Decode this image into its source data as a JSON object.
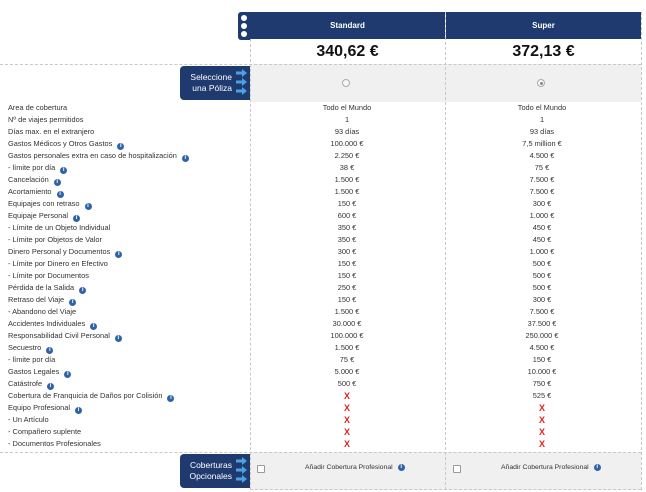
{
  "plans": [
    {
      "name": "Standard",
      "price": "340,62 €",
      "selected": false
    },
    {
      "name": "Super",
      "price": "372,13 €",
      "selected": true
    }
  ],
  "select_button": {
    "line1": "Seleccione",
    "line2": "una Póliza"
  },
  "optional_button": {
    "line1": "Coberturas",
    "line2": "Opcionales"
  },
  "add_coverage_label": "Añadir Cobertura Profesional",
  "rows": [
    {
      "label": "Area de cobertura",
      "info": false,
      "sub": false,
      "std": "Todo el Mundo",
      "sup": "Todo el Mundo"
    },
    {
      "label": "Nº de viajes permitidos",
      "info": false,
      "sub": false,
      "std": "1",
      "sup": "1"
    },
    {
      "label": "Días max. en el extranjero",
      "info": false,
      "sub": false,
      "std": "93 días",
      "sup": "93 días"
    },
    {
      "label": "Gastos Médicos y Otros Gastos",
      "info": true,
      "sub": false,
      "std": "100.000 €",
      "sup": "7,5 million €"
    },
    {
      "label": "Gastos personales extra en caso de hospitalización",
      "info": true,
      "sub": false,
      "std": "2.250 €",
      "sup": "4.500 €"
    },
    {
      "label": "-  límite por día",
      "info": true,
      "sub": true,
      "std": "38 €",
      "sup": "75 €"
    },
    {
      "label": "Cancelación",
      "info": true,
      "sub": false,
      "std": "1.500 €",
      "sup": "7.500 €"
    },
    {
      "label": "Acortamiento",
      "info": true,
      "sub": false,
      "std": "1.500 €",
      "sup": "7.500 €"
    },
    {
      "label": "Equipajes con retraso",
      "info": true,
      "sub": false,
      "std": "150 €",
      "sup": "300 €"
    },
    {
      "label": "Equipaje Personal",
      "info": true,
      "sub": false,
      "std": "600 €",
      "sup": "1.000 €"
    },
    {
      "label": "-  Límite de un Objeto Individual",
      "info": false,
      "sub": true,
      "std": "350 €",
      "sup": "450 €"
    },
    {
      "label": "-  Límite por Objetos de Valor",
      "info": false,
      "sub": true,
      "std": "350 €",
      "sup": "450 €"
    },
    {
      "label": "Dinero Personal y Documentos",
      "info": true,
      "sub": false,
      "std": "300 €",
      "sup": "1.000 €"
    },
    {
      "label": "-  Límite por Dinero en Efectivo",
      "info": false,
      "sub": true,
      "std": "150 €",
      "sup": "500 €"
    },
    {
      "label": "-  Límite por Documentos",
      "info": false,
      "sub": true,
      "std": "150 €",
      "sup": "500 €"
    },
    {
      "label": "Pérdida de la Salida",
      "info": true,
      "sub": false,
      "std": "250 €",
      "sup": "500 €"
    },
    {
      "label": "Retraso del Viaje",
      "info": true,
      "sub": false,
      "std": "150 €",
      "sup": "300 €"
    },
    {
      "label": "-  Abandono del Viaje",
      "info": false,
      "sub": true,
      "std": "1.500 €",
      "sup": "7.500 €"
    },
    {
      "label": "Accidentes Individuales",
      "info": true,
      "sub": false,
      "std": "30.000 €",
      "sup": "37.500 €"
    },
    {
      "label": "Responsabilidad Civil Personal",
      "info": true,
      "sub": false,
      "std": "100.000 €",
      "sup": "250.000 €"
    },
    {
      "label": "Secuestro",
      "info": true,
      "sub": false,
      "std": "1.500 €",
      "sup": "4.500 €"
    },
    {
      "label": "-  límite por día",
      "info": false,
      "sub": true,
      "std": "75 €",
      "sup": "150 €"
    },
    {
      "label": "Gastos Legales",
      "info": true,
      "sub": false,
      "std": "5.000 €",
      "sup": "10.000 €"
    },
    {
      "label": "Catástrofe",
      "info": true,
      "sub": false,
      "std": "500 €",
      "sup": "750 €"
    },
    {
      "label": "Cobertura de Franquicia de Daños por Colisión",
      "info": true,
      "sub": false,
      "std": "X",
      "sup": "525 €"
    },
    {
      "label": "Equipo Profesional",
      "info": true,
      "sub": false,
      "std": "X",
      "sup": "X"
    },
    {
      "label": "-  Un Artículo",
      "info": false,
      "sub": true,
      "std": "X",
      "sup": "X"
    },
    {
      "label": "-  Compañero suplente",
      "info": false,
      "sub": true,
      "std": "X",
      "sup": "X"
    },
    {
      "label": "-  Documentos Profesionales",
      "info": false,
      "sub": true,
      "std": "X",
      "sup": "X"
    }
  ],
  "info_glyph": "i",
  "colors": {
    "navy": "#1e3a6e",
    "x_red": "#e02020",
    "info_blue": "#2f63a8"
  }
}
